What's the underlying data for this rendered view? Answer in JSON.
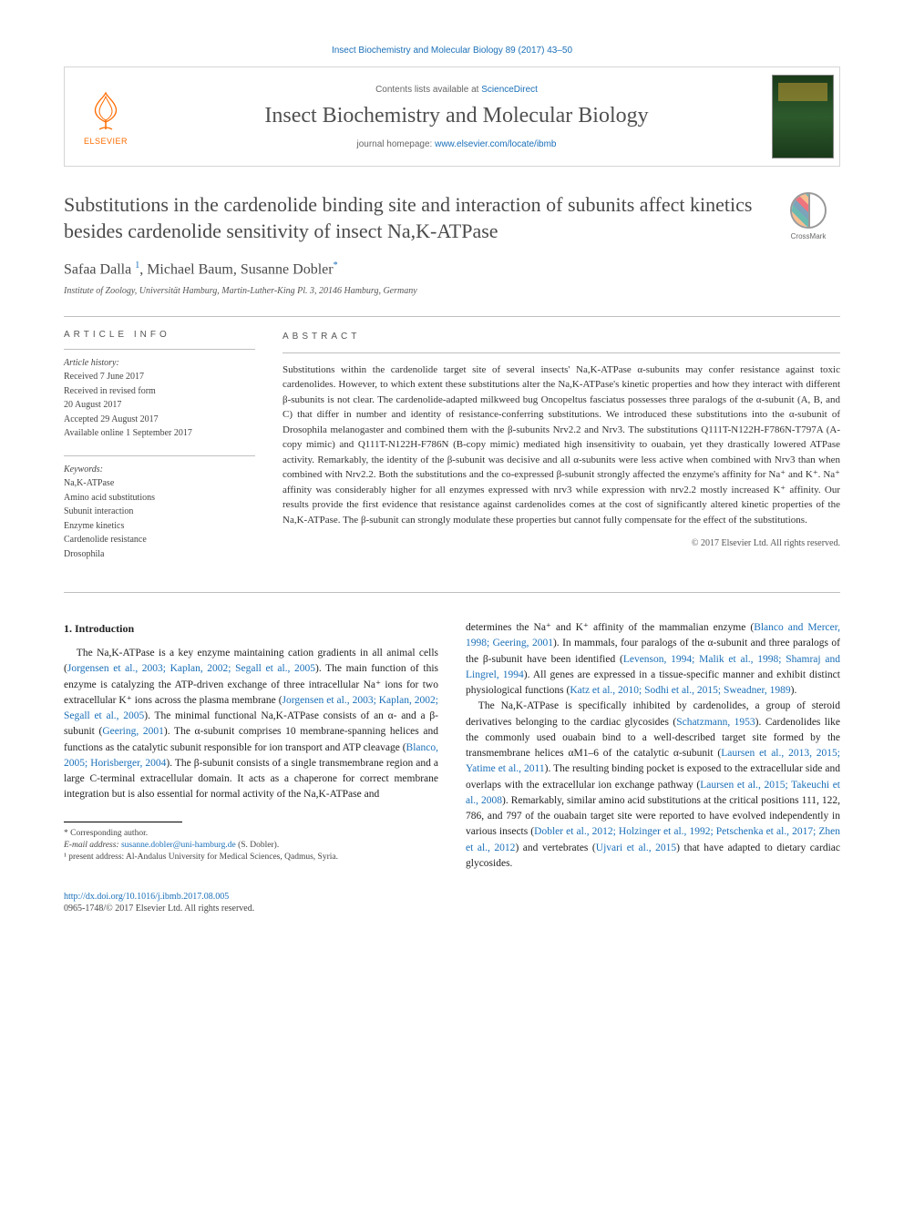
{
  "citation": "Insect Biochemistry and Molecular Biology 89 (2017) 43–50",
  "masthead": {
    "contents_prefix": "Contents lists available at ",
    "contents_link": "ScienceDirect",
    "journal": "Insect Biochemistry and Molecular Biology",
    "homepage_prefix": "journal homepage: ",
    "homepage_url": "www.elsevier.com/locate/ibmb",
    "publisher": "ELSEVIER"
  },
  "crossmark_label": "CrossMark",
  "title": "Substitutions in the cardenolide binding site and interaction of subunits affect kinetics besides cardenolide sensitivity of insect Na,K-ATPase",
  "authors_html": "Safaa Dalla <sup>1</sup>, Michael Baum, Susanne Dobler<sup>*</sup>",
  "affiliation": "Institute of Zoology, Universität Hamburg, Martin-Luther-King Pl. 3, 20146 Hamburg, Germany",
  "article_info": {
    "heading": "ARTICLE INFO",
    "history_label": "Article history:",
    "history": [
      "Received 7 June 2017",
      "Received in revised form",
      "20 August 2017",
      "Accepted 29 August 2017",
      "Available online 1 September 2017"
    ],
    "keywords_label": "Keywords:",
    "keywords": [
      "Na,K-ATPase",
      "Amino acid substitutions",
      "Subunit interaction",
      "Enzyme kinetics",
      "Cardenolide resistance",
      "Drosophila"
    ]
  },
  "abstract": {
    "heading": "ABSTRACT",
    "text": "Substitutions within the cardenolide target site of several insects' Na,K-ATPase α-subunits may confer resistance against toxic cardenolides. However, to which extent these substitutions alter the Na,K-ATPase's kinetic properties and how they interact with different β-subunits is not clear. The cardenolide-adapted milkweed bug Oncopeltus fasciatus possesses three paralogs of the α-subunit (A, B, and C) that differ in number and identity of resistance-conferring substitutions. We introduced these substitutions into the α-subunit of Drosophila melanogaster and combined them with the β-subunits Nrv2.2 and Nrv3. The substitutions Q111T-N122H-F786N-T797A (A-copy mimic) and Q111T-N122H-F786N (B-copy mimic) mediated high insensitivity to ouabain, yet they drastically lowered ATPase activity. Remarkably, the identity of the β-subunit was decisive and all α-subunits were less active when combined with Nrv3 than when combined with Nrv2.2. Both the substitutions and the co-expressed β-subunit strongly affected the enzyme's affinity for Na⁺ and K⁺. Na⁺ affinity was considerably higher for all enzymes expressed with nrv3 while expression with nrv2.2 mostly increased K⁺ affinity. Our results provide the first evidence that resistance against cardenolides comes at the cost of significantly altered kinetic properties of the Na,K-ATPase. The β-subunit can strongly modulate these properties but cannot fully compensate for the effect of the substitutions.",
    "copyright": "© 2017 Elsevier Ltd. All rights reserved."
  },
  "body": {
    "section_number": "1.",
    "section_title": "Introduction",
    "col1_html": "The Na,K-ATPase is a key enzyme maintaining cation gradients in all animal cells (<span class=\"link\">Jorgensen et al., 2003; Kaplan, 2002; Segall et al., 2005</span>). The main function of this enzyme is catalyzing the ATP-driven exchange of three intracellular Na⁺ ions for two extracellular K⁺ ions across the plasma membrane (<span class=\"link\">Jorgensen et al., 2003; Kaplan, 2002; Segall et al., 2005</span>). The minimal functional Na,K-ATPase consists of an α- and a β-subunit (<span class=\"link\">Geering, 2001</span>). The α-subunit comprises 10 membrane-spanning helices and functions as the catalytic subunit responsible for ion transport and ATP cleavage (<span class=\"link\">Blanco, 2005; Horisberger, 2004</span>). The β-subunit consists of a single transmembrane region and a large C-terminal extracellular domain. It acts as a chaperone for correct membrane integration but is also essential for normal activity of the Na,K-ATPase and",
    "col2_html": "determines the Na⁺ and K⁺ affinity of the mammalian enzyme (<span class=\"link\">Blanco and Mercer, 1998; Geering, 2001</span>). In mammals, four paralogs of the α-subunit and three paralogs of the β-subunit have been identified (<span class=\"link\">Levenson, 1994; Malik et al., 1998; Shamraj and Lingrel, 1994</span>). All genes are expressed in a tissue-specific manner and exhibit distinct physiological functions (<span class=\"link\">Katz et al., 2010; Sodhi et al., 2015; Sweadner, 1989</span>).</p><p>The Na,K-ATPase is specifically inhibited by cardenolides, a group of steroid derivatives belonging to the cardiac glycosides (<span class=\"link\">Schatzmann, 1953</span>). Cardenolides like the commonly used ouabain bind to a well-described target site formed by the transmembrane helices αM1–6 of the catalytic α-subunit (<span class=\"link\">Laursen et al., 2013, 2015; Yatime et al., 2011</span>). The resulting binding pocket is exposed to the extracellular side and overlaps with the extracellular ion exchange pathway (<span class=\"link\">Laursen et al., 2015; Takeuchi et al., 2008</span>). Remarkably, similar amino acid substitutions at the critical positions 111, 122, 786, and 797 of the ouabain target site were reported to have evolved independently in various insects (<span class=\"link\">Dobler et al., 2012; Holzinger et al., 1992; Petschenka et al., 2017; Zhen et al., 2012</span>) and vertebrates (<span class=\"link\">Ujvari et al., 2015</span>) that have adapted to dietary cardiac glycosides."
  },
  "footer": {
    "corresponding": "* Corresponding author.",
    "email_label": "E-mail address: ",
    "email": "susanne.dobler@uni-hamburg.de",
    "email_suffix": " (S. Dobler).",
    "note1": "¹ present address: Al-Andalus University for Medical Sciences, Qadmus, Syria.",
    "doi": "http://dx.doi.org/10.1016/j.ibmb.2017.08.005",
    "issn": "0965-1748/© 2017 Elsevier Ltd. All rights reserved."
  },
  "colors": {
    "link": "#1a6fb8",
    "orange": "#ff6c00",
    "rule": "#bfbfbf",
    "text": "#333333"
  }
}
